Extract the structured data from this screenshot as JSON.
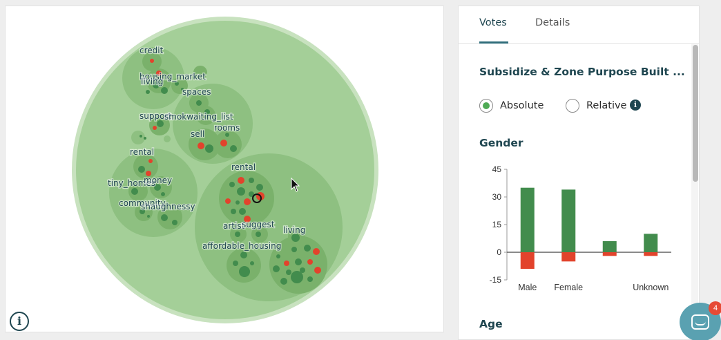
{
  "tabs": [
    {
      "label": "Votes",
      "active": true
    },
    {
      "label": "Details",
      "active": false
    }
  ],
  "proposal_title": "Subsidize & Zone Purpose Built ...",
  "view_mode": {
    "options": [
      "Absolute",
      "Relative"
    ],
    "selected": "Absolute",
    "info_icon": "info-icon"
  },
  "gender_section_title": "Gender",
  "age_section_title": "Age",
  "bubble_labels": [
    "credit",
    "housing_market",
    "living",
    "spaces",
    "support",
    "smokwaiting_list",
    "sell",
    "rooms",
    "rental",
    "tiny_homes",
    "money",
    "community",
    "shaughnessy",
    "rental",
    "artist",
    "suggest",
    "living",
    "affordable_housing"
  ],
  "info_button": "i",
  "chat_launcher": {
    "icon": "chat-icon",
    "badge_count": "4"
  },
  "colors": {
    "agree": "#428c4d",
    "disagree": "#e2432c",
    "bubble_outer": "#a4cf98",
    "bubble_mid": "#8ec081",
    "accent": "#1f4650",
    "chat": "#5aa1b1"
  },
  "chart_data": {
    "type": "bar",
    "title": "Gender",
    "categories": [
      "Male",
      "Female",
      "",
      "Unknown"
    ],
    "series": [
      {
        "values": [
          35,
          34,
          6,
          10
        ],
        "color": "#428c4d"
      },
      {
        "values": [
          -9,
          -5,
          -2,
          -2
        ],
        "color": "#e2432c"
      }
    ],
    "ylim": [
      -15,
      45
    ],
    "yticks": [
      45,
      30,
      15,
      0,
      -15
    ]
  }
}
